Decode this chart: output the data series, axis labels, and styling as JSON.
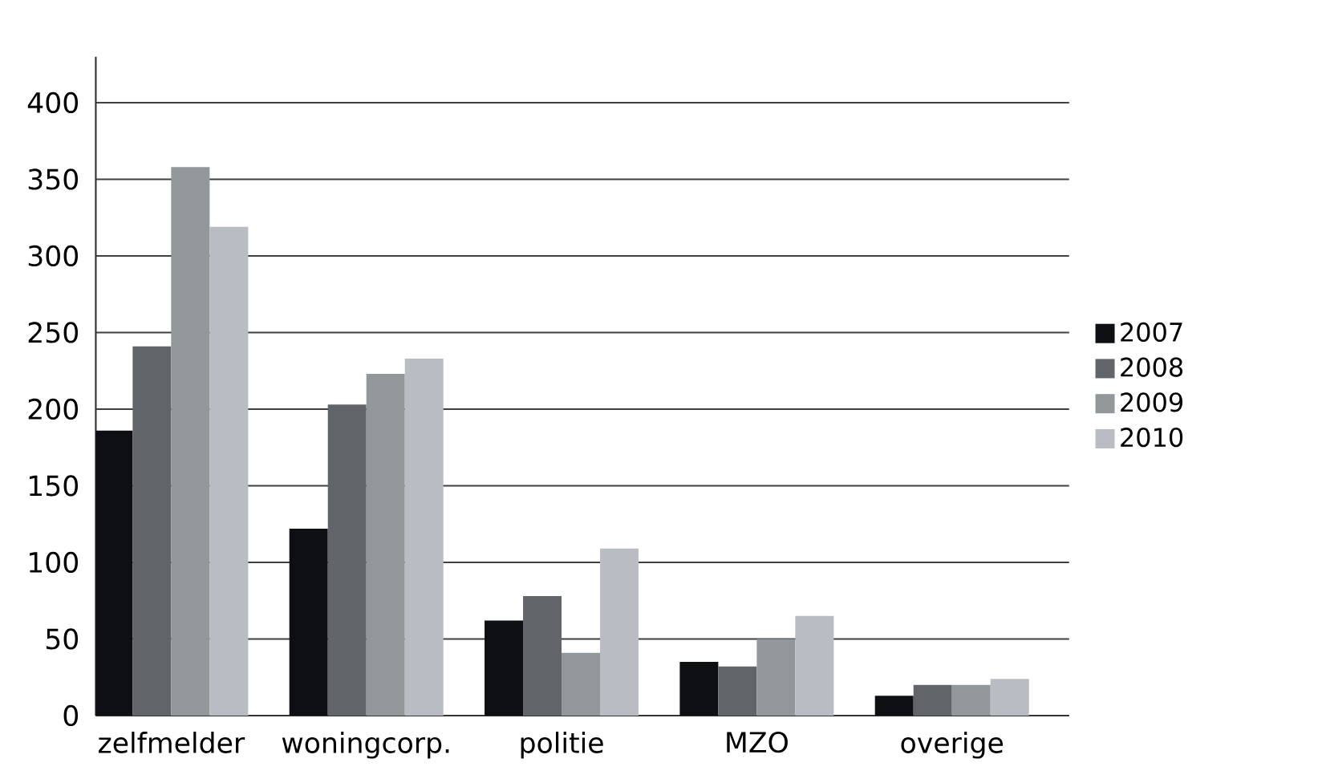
{
  "chart_data": {
    "type": "bar",
    "categories": [
      "zelfmelder",
      "woningcorp.",
      "politie",
      "MZO",
      "overige"
    ],
    "series": [
      {
        "name": "2007",
        "color": "#0e0f12",
        "values": [
          186,
          122,
          62,
          35,
          13
        ]
      },
      {
        "name": "2008",
        "color": "#616469",
        "values": [
          241,
          203,
          78,
          32,
          20
        ]
      },
      {
        "name": "2009",
        "color": "#92979a",
        "values": [
          358,
          223,
          41,
          50,
          20
        ]
      },
      {
        "name": "2010",
        "color": "#b9bcc2",
        "values": [
          319,
          233,
          109,
          65,
          24
        ]
      }
    ],
    "ylim": [
      0,
      430
    ],
    "yticks": [
      0,
      50,
      100,
      150,
      200,
      250,
      300,
      350,
      400
    ],
    "grid": "y",
    "legend": "right"
  }
}
